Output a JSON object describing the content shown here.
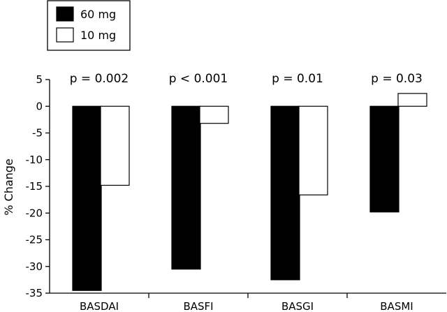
{
  "chart_data": {
    "type": "bar",
    "categories": [
      "BASDAI",
      "BASFI",
      "BASGI",
      "BASMI"
    ],
    "series": [
      {
        "name": "60 mg",
        "values": [
          -34.5,
          -30.5,
          -32.5,
          -19.8
        ],
        "color": "#000000"
      },
      {
        "name": "10 mg",
        "values": [
          -14.8,
          -3.2,
          -16.6,
          2.4
        ],
        "color": "#ffffff"
      }
    ],
    "annotations": [
      "p = 0.002",
      "p < 0.001",
      "p = 0.01",
      "p = 0.03"
    ],
    "ylabel": "% Change",
    "xlabel": "",
    "ylim": [
      -35,
      5
    ],
    "yticks": [
      5,
      0,
      -5,
      -10,
      -15,
      -20,
      -25,
      -30,
      -35
    ],
    "legend_position": "top-left",
    "grid": false
  }
}
